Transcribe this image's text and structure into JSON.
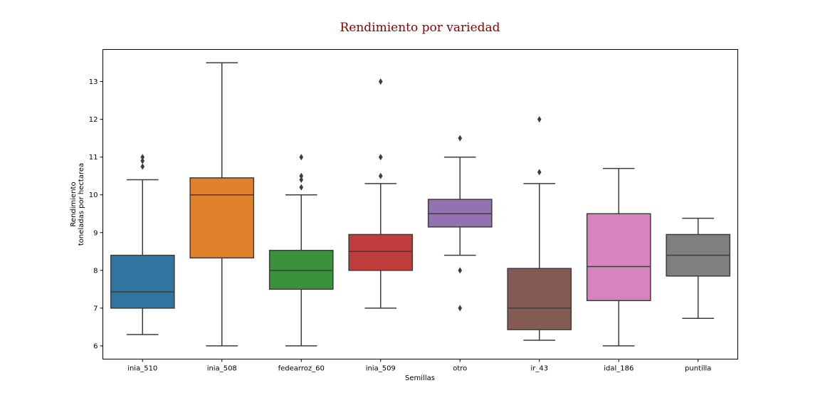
{
  "chart_data": {
    "type": "box",
    "title": "Rendimiento por variedad",
    "xlabel": "Semillas",
    "ylabel_lines": [
      "Rendimiento",
      "toneladas por hectarea"
    ],
    "ylim": [
      5.65,
      13.85
    ],
    "yticks": [
      6,
      7,
      8,
      9,
      10,
      11,
      12,
      13
    ],
    "grid": false,
    "colors": {
      "title": "#8b0000",
      "median": "#3d3d3d",
      "whisker": "#3d3d3d",
      "flier": "#3d3d3d"
    },
    "categories": [
      "inia_510",
      "inia_508",
      "fedearroz_60",
      "inia_509",
      "otro",
      "ir_43",
      "idal_186",
      "puntilla"
    ],
    "boxes": [
      {
        "label": "inia_510",
        "color": "#3274a1",
        "whislo": 6.3,
        "q1": 7.0,
        "med": 7.43,
        "q3": 8.4,
        "whishi": 10.4,
        "fliers": [
          10.75,
          10.9,
          11.0
        ]
      },
      {
        "label": "inia_508",
        "color": "#e1812c",
        "whislo": 6.0,
        "q1": 8.33,
        "med": 10.0,
        "q3": 10.45,
        "whishi": 13.5,
        "fliers": []
      },
      {
        "label": "fedearroz_60",
        "color": "#3a923a",
        "whislo": 6.0,
        "q1": 7.5,
        "med": 8.0,
        "q3": 8.53,
        "whishi": 10.0,
        "fliers": [
          10.2,
          10.4,
          10.5,
          11.0
        ]
      },
      {
        "label": "inia_509",
        "color": "#c03d3e",
        "whislo": 7.0,
        "q1": 8.0,
        "med": 8.5,
        "q3": 8.95,
        "whishi": 10.3,
        "fliers": [
          10.5,
          11.0,
          13.0
        ]
      },
      {
        "label": "otro",
        "color": "#9372b2",
        "whislo": 8.4,
        "q1": 9.15,
        "med": 9.5,
        "q3": 9.88,
        "whishi": 11.0,
        "fliers": [
          8.0,
          7.0,
          11.5
        ]
      },
      {
        "label": "ir_43",
        "color": "#845b53",
        "whislo": 6.15,
        "q1": 6.43,
        "med": 7.0,
        "q3": 8.05,
        "whishi": 10.3,
        "fliers": [
          10.6,
          12.0
        ]
      },
      {
        "label": "idal_186",
        "color": "#d684bd",
        "whislo": 6.0,
        "q1": 7.2,
        "med": 8.1,
        "q3": 9.5,
        "whishi": 10.7,
        "fliers": []
      },
      {
        "label": "puntilla",
        "color": "#7f7f7f",
        "whislo": 6.73,
        "q1": 7.85,
        "med": 8.4,
        "q3": 8.95,
        "whishi": 9.38,
        "fliers": []
      }
    ]
  }
}
